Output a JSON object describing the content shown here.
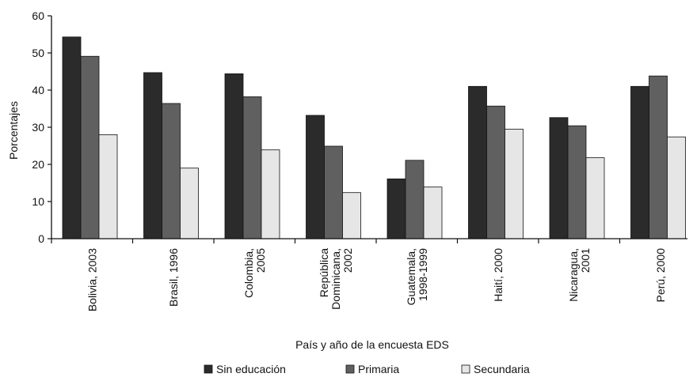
{
  "chart_data": {
    "type": "bar",
    "title": "",
    "xlabel": "País y año de la encuesta EDS",
    "ylabel": "Porcentajes",
    "ylim": [
      0,
      60
    ],
    "yticks": [
      0,
      10,
      20,
      30,
      40,
      50,
      60
    ],
    "grid": false,
    "legend_position": "bottom",
    "categories": [
      [
        "Bolivia, 2003"
      ],
      [
        "Brasil, 1996"
      ],
      [
        "Colombia,",
        "2005"
      ],
      [
        "República",
        "Dominicana,",
        "2002"
      ],
      [
        "Guatemala,",
        "1998-1999"
      ],
      [
        "Haití, 2000"
      ],
      [
        "Nicaragua,",
        "2001"
      ],
      [
        "Perú, 2000"
      ]
    ],
    "series": [
      {
        "name": "Sin educación",
        "color": "#2b2b2b",
        "values": [
          54.3,
          44.7,
          44.4,
          33.2,
          16.1,
          41.0,
          32.6,
          41.0
        ]
      },
      {
        "name": "Primaria",
        "color": "#606060",
        "values": [
          49.1,
          36.4,
          38.2,
          24.9,
          21.1,
          35.7,
          30.4,
          43.8
        ]
      },
      {
        "name": "Secundaria",
        "color": "#e6e6e6",
        "values": [
          28.0,
          19.0,
          23.9,
          12.4,
          13.9,
          29.5,
          21.8,
          27.4
        ]
      }
    ]
  }
}
